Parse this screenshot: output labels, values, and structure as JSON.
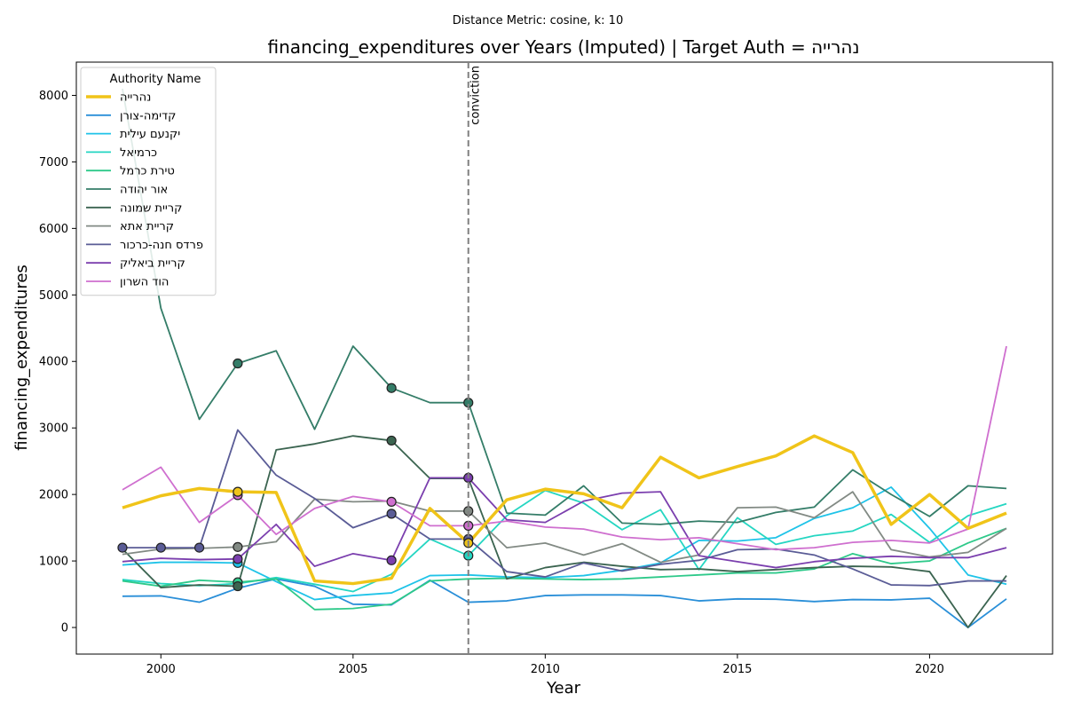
{
  "chart_data": {
    "type": "line",
    "suptitle": "Distance Metric: cosine, k: 10",
    "title": "financing_expenditures over Years (Imputed) | Target Auth = נהרייה",
    "xlabel": "Year",
    "ylabel": "financing_expenditures",
    "xlim": [
      1997.8,
      2023.2
    ],
    "ylim": [
      -400,
      8500
    ],
    "xticks": [
      2000,
      2005,
      2010,
      2015,
      2020
    ],
    "yticks": [
      0,
      1000,
      2000,
      3000,
      4000,
      5000,
      6000,
      7000,
      8000
    ],
    "x": [
      1999,
      2000,
      2001,
      2002,
      2003,
      2004,
      2005,
      2006,
      2007,
      2008,
      2009,
      2010,
      2011,
      2012,
      2013,
      2014,
      2015,
      2016,
      2017,
      2018,
      2019,
      2020,
      2021,
      2022
    ],
    "vline": {
      "x": 2008,
      "label": "conviction",
      "color": "#808080"
    },
    "legend": {
      "title": "Authority Name",
      "position": "upper-left"
    },
    "series": [
      {
        "name": "נהרייה",
        "color": "#f0c419",
        "width": 3.5,
        "target": true,
        "values": [
          1800,
          1980,
          2090,
          2040,
          2030,
          700,
          660,
          740,
          1790,
          1270,
          1920,
          2080,
          2010,
          1800,
          2560,
          2250,
          2420,
          2580,
          2880,
          2630,
          1550,
          2000,
          1490,
          1720
        ],
        "markers": [
          2002,
          2008
        ]
      },
      {
        "name": "קדימה-צורן",
        "color": "#2a8fd8",
        "width": 1.8,
        "values": [
          470,
          475,
          380,
          590,
          730,
          620,
          350,
          340,
          710,
          380,
          400,
          480,
          490,
          490,
          480,
          400,
          430,
          425,
          390,
          420,
          415,
          440,
          0,
          430
        ],
        "markers": []
      },
      {
        "name": "יקנעם עילית",
        "color": "#1fc3e8",
        "width": 1.8,
        "values": [
          940,
          980,
          980,
          970,
          690,
          420,
          480,
          520,
          780,
          790,
          760,
          750,
          780,
          860,
          970,
          1310,
          1300,
          1350,
          1640,
          1800,
          2110,
          1490,
          790,
          650
        ],
        "markers": [
          2002
        ]
      },
      {
        "name": "כרמיאל",
        "color": "#25d6c2",
        "width": 1.8,
        "values": [
          720,
          660,
          630,
          660,
          750,
          650,
          540,
          800,
          1330,
          1080,
          1680,
          2060,
          1870,
          1470,
          1770,
          870,
          1650,
          1250,
          1380,
          1450,
          1700,
          1280,
          1680,
          1860
        ],
        "markers": [
          2008
        ]
      },
      {
        "name": "טירת כרמל",
        "color": "#2ec98a",
        "width": 1.8,
        "values": [
          700,
          620,
          710,
          680,
          730,
          270,
          285,
          350,
          700,
          730,
          740,
          730,
          720,
          730,
          760,
          790,
          820,
          820,
          880,
          1110,
          960,
          1000,
          1270,
          1490
        ],
        "markers": [
          2002
        ]
      },
      {
        "name": "אור יהודה",
        "color": "#347d68",
        "width": 1.8,
        "values": [
          8100,
          4800,
          3130,
          3970,
          4160,
          2980,
          4230,
          3600,
          3380,
          3380,
          1720,
          1690,
          2130,
          1570,
          1550,
          1600,
          1580,
          1730,
          1810,
          2370,
          2000,
          1670,
          2130,
          2090
        ],
        "markers": [
          2002,
          2006,
          2008
        ]
      },
      {
        "name": "קריית שמונה",
        "color": "#3b6450",
        "width": 1.8,
        "values": [
          1180,
          600,
          640,
          620,
          2670,
          2760,
          2880,
          2810,
          2240,
          2240,
          730,
          900,
          980,
          920,
          870,
          880,
          840,
          870,
          900,
          920,
          910,
          840,
          0,
          780
        ],
        "markers": [
          2002,
          2006
        ]
      },
      {
        "name": "קריית אתא",
        "color": "#828a84",
        "width": 1.8,
        "values": [
          1100,
          1180,
          1190,
          1210,
          1290,
          1930,
          1890,
          1900,
          1750,
          1750,
          1200,
          1270,
          1090,
          1260,
          980,
          1090,
          1800,
          1810,
          1650,
          2040,
          1170,
          1060,
          1130,
          1490
        ],
        "markers": [
          2002,
          2008
        ]
      },
      {
        "name": "פרדס חנה-כרכור",
        "color": "#5a5c96",
        "width": 1.8,
        "values": [
          1200,
          1200,
          1200,
          2970,
          2290,
          1940,
          1500,
          1710,
          1330,
          1330,
          840,
          760,
          970,
          850,
          950,
          1010,
          1170,
          1180,
          1090,
          880,
          640,
          630,
          700,
          700
        ],
        "markers": [
          1999,
          2000,
          2001,
          2006,
          2008
        ]
      },
      {
        "name": "קריית ביאליק",
        "color": "#7b3fae",
        "width": 1.8,
        "values": [
          990,
          1040,
          1020,
          1030,
          1550,
          920,
          1110,
          1010,
          2250,
          2250,
          1620,
          1580,
          1900,
          2020,
          2040,
          1080,
          990,
          900,
          990,
          1040,
          1070,
          1050,
          1050,
          1200
        ],
        "markers": [
          2002,
          2006,
          2008
        ]
      },
      {
        "name": "הוד השרון",
        "color": "#cf6fcf",
        "width": 1.8,
        "values": [
          2070,
          2410,
          1580,
          1990,
          1400,
          1790,
          1970,
          1890,
          1530,
          1530,
          1600,
          1510,
          1480,
          1360,
          1320,
          1350,
          1260,
          1170,
          1200,
          1280,
          1310,
          1270,
          1480,
          4230
        ],
        "markers": [
          2002,
          2006,
          2008
        ]
      }
    ]
  }
}
